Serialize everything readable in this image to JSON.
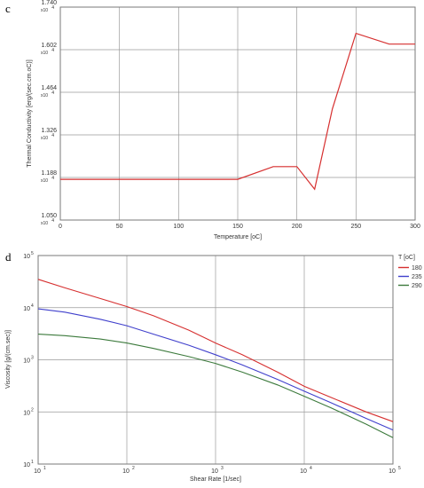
{
  "chart_data": [
    {
      "panel": "c",
      "type": "line",
      "xlabel": "Temperature [oC]",
      "ylabel": "Thermal Conductivity [erg/(sec.cm.oC)]",
      "xlim": [
        0,
        300
      ],
      "ylim": [
        1.05,
        1.74
      ],
      "y_multiplier_label": "x10",
      "y_multiplier_exponent": "4",
      "xticks": [
        "0",
        "50",
        "100",
        "150",
        "200",
        "250",
        "300"
      ],
      "yticks": [
        "1.050",
        "1.188",
        "1.326",
        "1.464",
        "1.602",
        "1.740"
      ],
      "grid": true,
      "series": [
        {
          "color": "#d62f2f",
          "x": [
            0,
            150,
            180,
            200,
            215,
            230,
            250,
            278,
            300
          ],
          "y": [
            1.182,
            1.182,
            1.223,
            1.223,
            1.15,
            1.41,
            1.655,
            1.62,
            1.62
          ]
        }
      ]
    },
    {
      "panel": "d",
      "type": "line",
      "xlabel": "Shear Rate [1/sec]",
      "ylabel": "Viscosity [g/(cm.sec)]",
      "xscale": "log",
      "yscale": "log",
      "xlim": [
        10,
        100000
      ],
      "ylim": [
        10,
        100000
      ],
      "xticks": [
        {
          "base": "10",
          "exp": "1"
        },
        {
          "base": "10",
          "exp": "2"
        },
        {
          "base": "10",
          "exp": "3"
        },
        {
          "base": "10",
          "exp": "4"
        },
        {
          "base": "10",
          "exp": "5"
        }
      ],
      "yticks": [
        {
          "base": "10",
          "exp": "1"
        },
        {
          "base": "10",
          "exp": "2"
        },
        {
          "base": "10",
          "exp": "3"
        },
        {
          "base": "10",
          "exp": "4"
        },
        {
          "base": "10",
          "exp": "5"
        }
      ],
      "grid": true,
      "legend_title": "T [oC]",
      "legend_position": "outside-right",
      "series": [
        {
          "name": "180",
          "color": "#d62f2f",
          "x": [
            10,
            20,
            50,
            100,
            200,
            500,
            1000,
            2000,
            5000,
            10000,
            20000,
            50000,
            100000
          ],
          "y": [
            35000,
            24000,
            15000,
            10500,
            7000,
            3700,
            2100,
            1250,
            580,
            310,
            190,
            100,
            65
          ]
        },
        {
          "name": "235",
          "color": "#4040cc",
          "x": [
            10,
            20,
            50,
            100,
            200,
            500,
            1000,
            2000,
            5000,
            10000,
            20000,
            50000,
            100000
          ],
          "y": [
            9500,
            8200,
            6000,
            4500,
            3100,
            1900,
            1250,
            800,
            420,
            250,
            150,
            75,
            45
          ]
        },
        {
          "name": "290",
          "color": "#3c7a3c",
          "x": [
            10,
            20,
            50,
            100,
            200,
            500,
            1000,
            2000,
            5000,
            10000,
            20000,
            50000,
            100000
          ],
          "y": [
            3100,
            2900,
            2500,
            2100,
            1650,
            1150,
            850,
            580,
            330,
            200,
            120,
            58,
            32
          ]
        }
      ]
    }
  ]
}
